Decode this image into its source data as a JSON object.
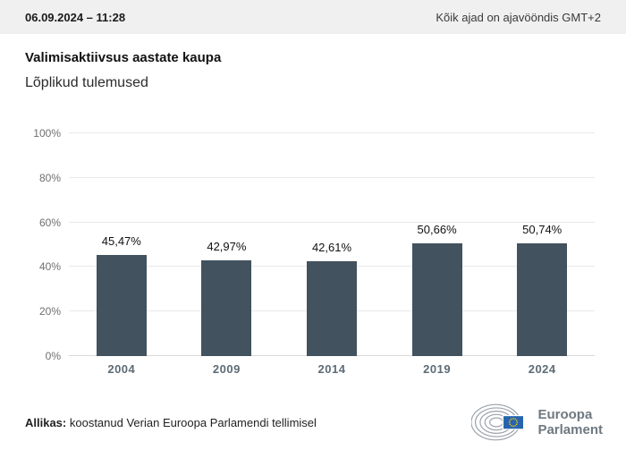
{
  "header": {
    "datetime": "06.09.2024 – 11:28",
    "timezone_note": "Kõik ajad on ajavööndis GMT+2"
  },
  "title": "Valimisaktiivsus aastate kaupa",
  "subtitle": "Lõplikud tulemused",
  "chart_data": {
    "type": "bar",
    "categories": [
      "2004",
      "2009",
      "2014",
      "2019",
      "2024"
    ],
    "values": [
      45.47,
      42.97,
      42.61,
      50.66,
      50.74
    ],
    "value_labels": [
      "45,47%",
      "42,97%",
      "42,61%",
      "50,66%",
      "50,74%"
    ],
    "title": "Valimisaktiivsus aastate kaupa",
    "subtitle": "Lõplikud tulemused",
    "xlabel": "",
    "ylabel": "",
    "ylim": [
      0,
      100
    ],
    "yticks": [
      0,
      20,
      40,
      60,
      80,
      100
    ],
    "ytick_labels": [
      "0%",
      "20%",
      "40%",
      "60%",
      "80%",
      "100%"
    ],
    "grid": true,
    "legend": false,
    "bar_color": "#42525e"
  },
  "footer": {
    "source_label": "Allikas:",
    "source_text": " koostanud Verian Euroopa Parlamendi tellimisel",
    "logo_line1": "Euroopa",
    "logo_line2": "Parlament"
  },
  "colors": {
    "bar": "#42525e",
    "header_bg": "#f0f0f1",
    "eu_blue": "#2664ad",
    "star_yellow": "#ffcc00",
    "logo_gray": "#9aa2aa"
  }
}
